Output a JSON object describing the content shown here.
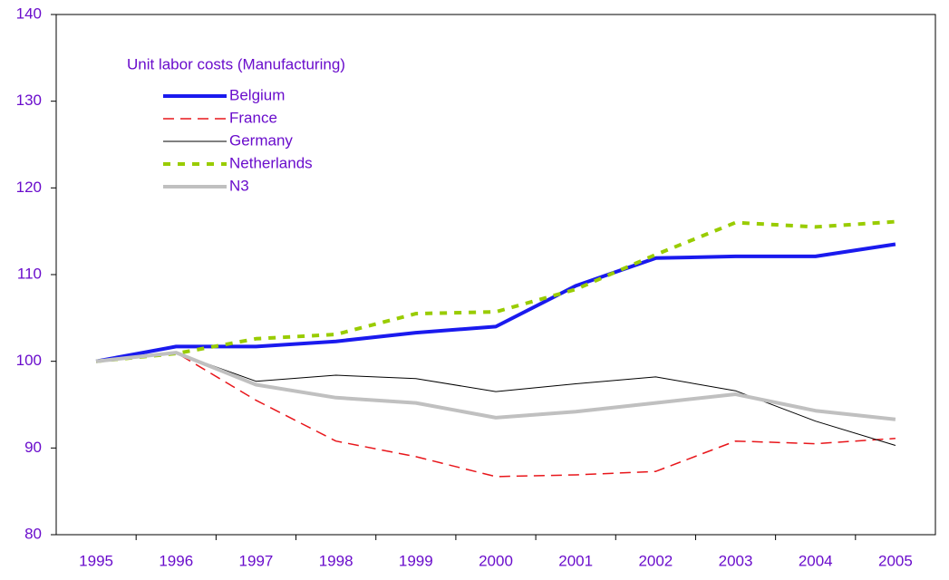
{
  "chart_data": {
    "type": "line",
    "title": "Unit labor costs (Manufacturing)",
    "categories": [
      "1995",
      "1996",
      "1997",
      "1998",
      "1999",
      "2000",
      "2001",
      "2002",
      "2003",
      "2004",
      "2005"
    ],
    "series": [
      {
        "name": "Belgium",
        "color": "#1a1aee",
        "line_width": 4,
        "line_style": "solid",
        "values": [
          100,
          101.7,
          101.7,
          102.3,
          103.3,
          104.0,
          108.7,
          111.9,
          112.1,
          112.1,
          113.5
        ]
      },
      {
        "name": "France",
        "color": "#e8161b",
        "line_width": 1.5,
        "line_style": "dashed",
        "values": [
          100,
          101,
          95.5,
          90.8,
          89.0,
          86.7,
          86.9,
          87.3,
          90.8,
          90.5,
          91.1
        ]
      },
      {
        "name": "Germany",
        "color": "#000000",
        "line_width": 1,
        "line_style": "solid",
        "values": [
          100,
          101,
          97.7,
          98.4,
          98.0,
          96.5,
          97.4,
          98.2,
          96.6,
          93.1,
          90.3
        ]
      },
      {
        "name": "Netherlands",
        "color": "#99cc00",
        "line_width": 4,
        "line_style": "dotted",
        "values": [
          100,
          100.9,
          102.6,
          103.1,
          105.5,
          105.7,
          108.3,
          112.3,
          116.0,
          115.5,
          116.1
        ]
      },
      {
        "name": "N3",
        "color": "#c0c0c0",
        "line_width": 4,
        "line_style": "solid",
        "values": [
          100,
          101,
          97.3,
          95.8,
          95.2,
          93.5,
          94.2,
          95.2,
          96.2,
          94.3,
          93.3
        ]
      }
    ],
    "ylim": [
      80,
      140
    ],
    "yticks": [
      80,
      90,
      100,
      110,
      120,
      130,
      140
    ],
    "grid": false
  }
}
